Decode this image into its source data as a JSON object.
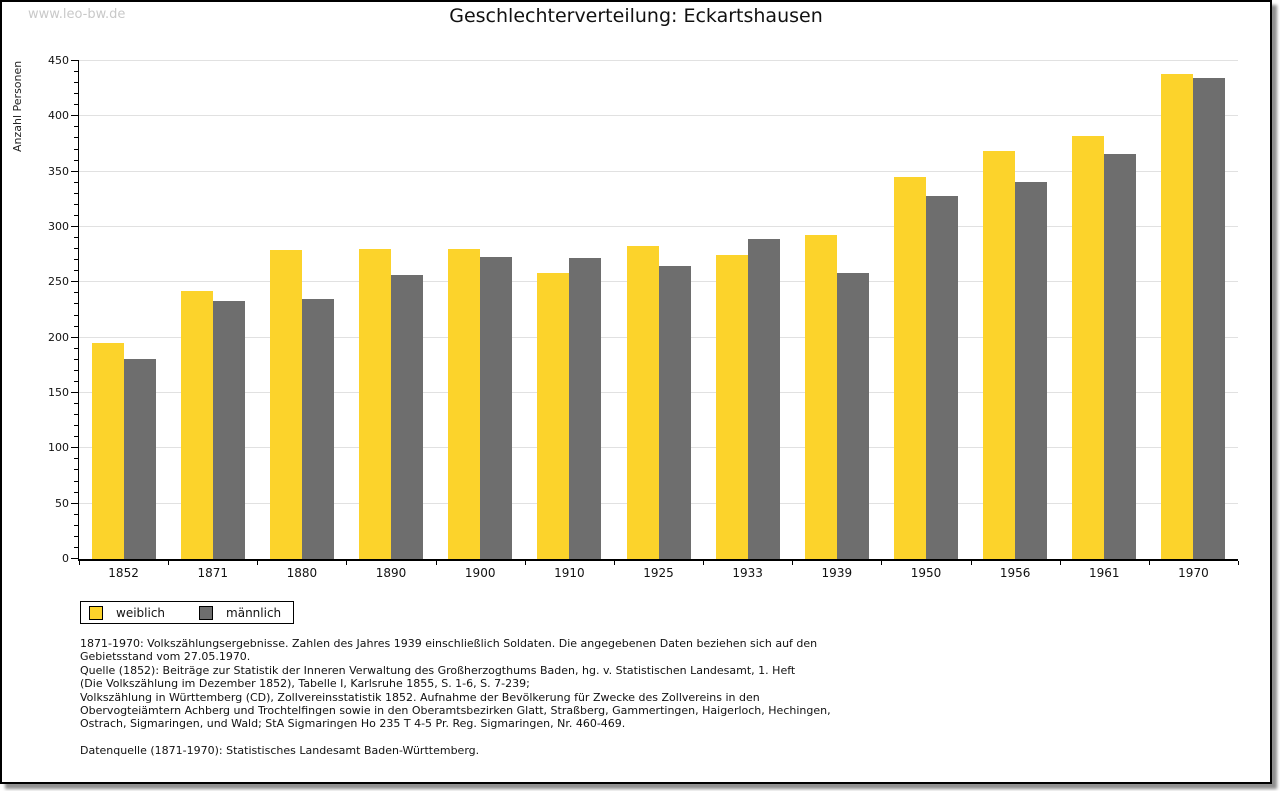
{
  "watermark": "www.leo-bw.de",
  "title": "Geschlechterverteilung: Eckartshausen",
  "chart_data": {
    "type": "bar",
    "title": "Geschlechterverteilung: Eckartshausen",
    "xlabel": "",
    "ylabel": "Anzahl Personen",
    "ylim": [
      0,
      450
    ],
    "ytick_step": 50,
    "y_minor_step": 10,
    "grid": true,
    "legend_position": "bottom-left",
    "categories": [
      "1852",
      "1871",
      "1880",
      "1890",
      "1900",
      "1910",
      "1925",
      "1933",
      "1939",
      "1950",
      "1956",
      "1961",
      "1970"
    ],
    "series": [
      {
        "name": "weiblich",
        "color": "#FCD32B",
        "values": [
          195,
          242,
          279,
          280,
          280,
          258,
          283,
          275,
          293,
          345,
          369,
          382,
          438
        ]
      },
      {
        "name": "männlich",
        "color": "#6E6E6E",
        "values": [
          181,
          233,
          235,
          257,
          273,
          272,
          265,
          289,
          258,
          328,
          341,
          366,
          435
        ]
      }
    ]
  },
  "footnotes": {
    "lines": [
      "1871-1970: Volkszählungsergebnisse. Zahlen des Jahres 1939 einschließlich Soldaten. Die angegebenen Daten beziehen sich auf den",
      "Gebietsstand vom 27.05.1970.",
      "Quelle (1852): Beiträge zur Statistik der Inneren Verwaltung des Großherzogthums Baden, hg. v. Statistischen Landesamt, 1. Heft",
      "(Die Volkszählung im Dezember 1852), Tabelle I, Karlsruhe 1855, S. 1-6, S. 7-239;",
      "Volkszählung in Württemberg (CD), Zollvereinsstatistik 1852. Aufnahme der Bevölkerung für Zwecke des Zollvereins in den",
      "Obervogteiämtern Achberg und Trochtelfingen sowie in den Oberamtsbezirken Glatt, Straßberg, Gammertingen, Haigerloch, Hechingen,",
      "Ostrach, Sigmaringen, und Wald; StA Sigmaringen Ho 235 T 4-5 Pr. Reg. Sigmaringen, Nr. 460-469.",
      "",
      "Datenquelle (1871-1970): Statistisches Landesamt Baden-Württemberg."
    ]
  },
  "colors": {
    "weiblich": "#FCD32B",
    "männlich": "#6E6E6E",
    "gridline": "#E1E1E1",
    "axis": "#000000",
    "watermark": "#C9C9C9",
    "background": "#FFFFFF"
  }
}
